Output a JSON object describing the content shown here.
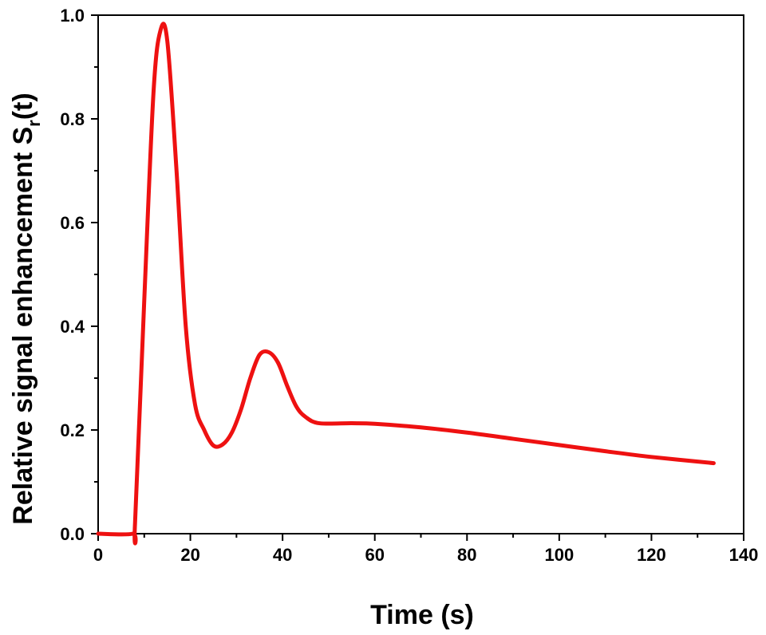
{
  "chart_data": {
    "type": "line",
    "title": "",
    "xlabel": "Time (s)",
    "ylabel": {
      "prefix": "Relative signal enhancement S",
      "subscript": "r",
      "suffix": "(t)"
    },
    "xlim": [
      0,
      140
    ],
    "ylim": [
      0,
      1.0
    ],
    "x_ticks": [
      {
        "value": 0,
        "label": "0"
      },
      {
        "value": 20,
        "label": "20"
      },
      {
        "value": 40,
        "label": "40"
      },
      {
        "value": 60,
        "label": "60"
      },
      {
        "value": 80,
        "label": "80"
      },
      {
        "value": 100,
        "label": "100"
      },
      {
        "value": 120,
        "label": "120"
      },
      {
        "value": 140,
        "label": "140"
      }
    ],
    "y_ticks": [
      {
        "value": 0.0,
        "label": "0.0"
      },
      {
        "value": 0.2,
        "label": "0.2"
      },
      {
        "value": 0.4,
        "label": "0.4"
      },
      {
        "value": 0.6,
        "label": "0.6"
      },
      {
        "value": 0.8,
        "label": "0.8"
      },
      {
        "value": 1.0,
        "label": "1.0"
      }
    ],
    "grid": false,
    "series": [
      {
        "name": "Relative signal enhancement",
        "color": "#ee1111",
        "x": [
          0,
          7.5,
          8,
          10,
          12,
          13.5,
          15,
          17,
          19,
          21,
          23,
          25,
          27,
          29,
          31,
          33,
          35,
          37,
          39,
          41,
          43,
          45,
          48,
          55,
          60,
          70,
          80,
          90,
          100,
          110,
          120,
          133.5
        ],
        "y": [
          0.0,
          0.0,
          0.02,
          0.45,
          0.85,
          0.97,
          0.95,
          0.7,
          0.4,
          0.25,
          0.2,
          0.17,
          0.172,
          0.195,
          0.24,
          0.3,
          0.345,
          0.35,
          0.33,
          0.285,
          0.245,
          0.225,
          0.213,
          0.213,
          0.212,
          0.205,
          0.195,
          0.183,
          0.171,
          0.159,
          0.148,
          0.136
        ]
      }
    ]
  }
}
